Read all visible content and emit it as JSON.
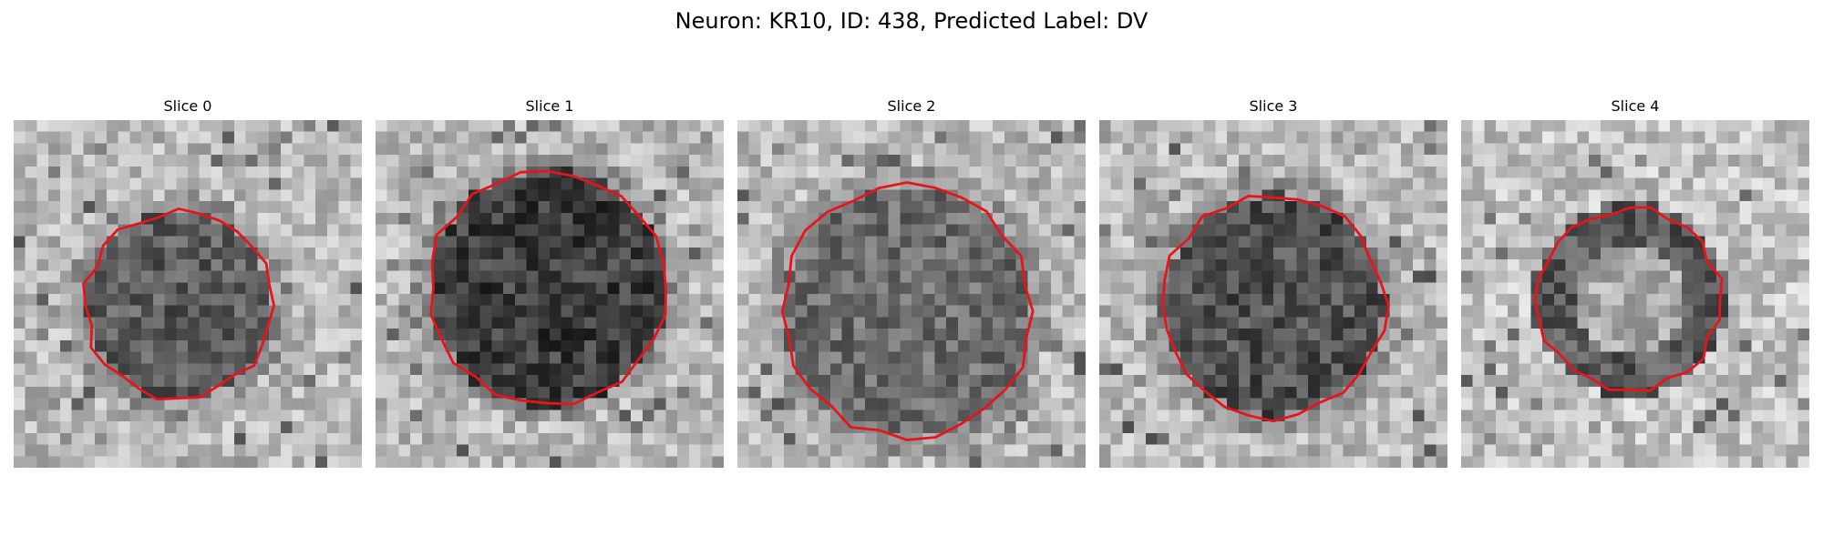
{
  "figure": {
    "title": "Neuron: KR10, ID: 438, Predicted Label: DV",
    "contour_color": "#e8141b"
  },
  "slices": [
    {
      "label": "Slice 0",
      "seed": 11,
      "center": [
        14.2,
        16.0
      ],
      "radius": 8.0,
      "fill": 92,
      "ring": 0,
      "tone": "mid"
    },
    {
      "label": "Slice 1",
      "seed": 23,
      "center": [
        14.8,
        14.5
      ],
      "radius": 10.2,
      "fill": 62,
      "ring": 0,
      "tone": "dark"
    },
    {
      "label": "Slice 2",
      "seed": 37,
      "center": [
        14.6,
        16.5
      ],
      "radius": 10.8,
      "fill": 110,
      "ring": 0,
      "tone": "mid"
    },
    {
      "label": "Slice 3",
      "seed": 41,
      "center": [
        15.0,
        16.0
      ],
      "radius": 9.6,
      "fill": 80,
      "ring": 0,
      "tone": "dark"
    },
    {
      "label": "Slice 4",
      "seed": 53,
      "center": [
        14.5,
        15.5
      ],
      "radius": 7.8,
      "fill": 170,
      "ring": 90,
      "tone": "ring"
    }
  ]
}
